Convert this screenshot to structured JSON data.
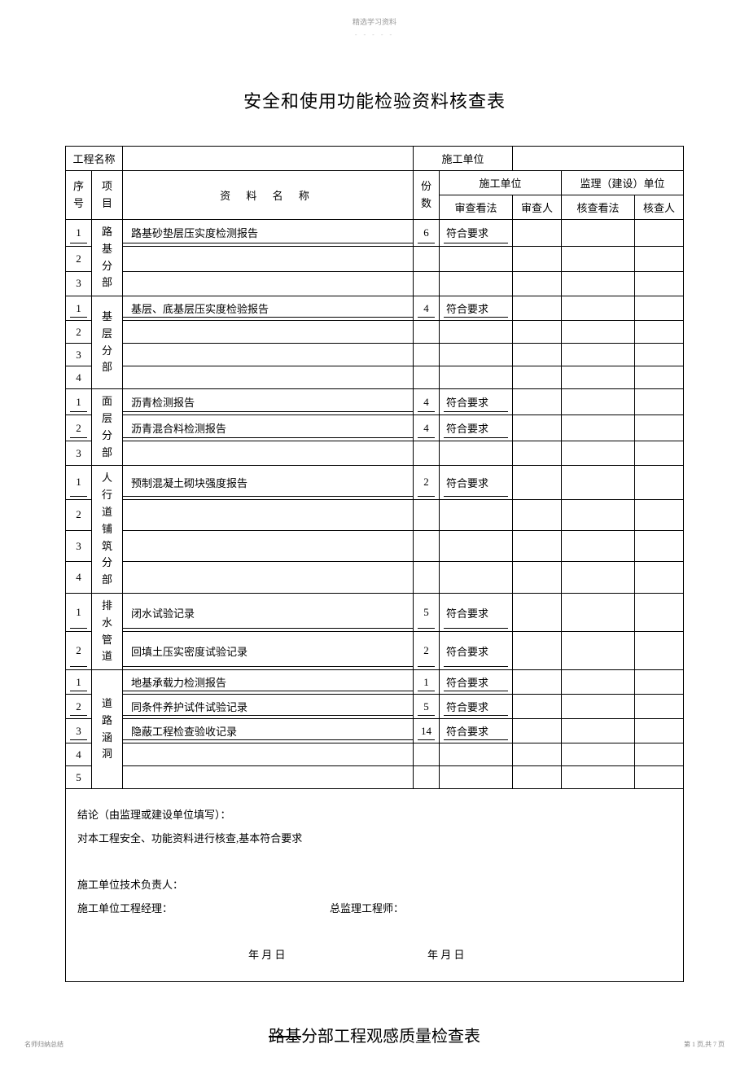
{
  "watermark": "精选学习资料",
  "watermark_sub": "- - - - -",
  "title1": "安全和使用功能检验资料核查表",
  "header": {
    "project_name_label": "工程名称",
    "construction_unit_label": "施工单位",
    "seq_label": "序号",
    "item_label": "项目",
    "material_name_label": "资 料 名 称",
    "count_label": "份数",
    "constructor_group": "施工单位",
    "supervisor_group": "监理（建设）单位",
    "review_opinion": "审查看法",
    "reviewer": "审查人",
    "check_opinion": "核查看法",
    "checker": "核查人"
  },
  "sections": [
    {
      "label": "路基分部",
      "rows": [
        {
          "n": "1",
          "name": "路基砂垫层压实度检测报告",
          "c": "6",
          "r": "符合要求"
        },
        {
          "n": "2",
          "name": "",
          "c": "",
          "r": ""
        },
        {
          "n": "3",
          "name": "",
          "c": "",
          "r": ""
        }
      ]
    },
    {
      "label": "基层分部",
      "rows": [
        {
          "n": "1",
          "name": "基层、底基层压实度检验报告",
          "c": "4",
          "r": "符合要求"
        },
        {
          "n": "2",
          "name": "",
          "c": "",
          "r": ""
        },
        {
          "n": "3",
          "name": "",
          "c": "",
          "r": ""
        },
        {
          "n": "4",
          "name": "",
          "c": "",
          "r": ""
        }
      ]
    },
    {
      "label": "面层分部",
      "rows": [
        {
          "n": "1",
          "name": "沥青检测报告",
          "c": "4",
          "r": "符合要求"
        },
        {
          "n": "2",
          "name": "沥青混合料检测报告",
          "c": "4",
          "r": "符合要求"
        },
        {
          "n": "3",
          "name": "",
          "c": "",
          "r": ""
        }
      ]
    },
    {
      "label": "人行道铺筑分部",
      "rows": [
        {
          "n": "1",
          "name": "预制混凝土砌块强度报告",
          "c": "2",
          "r": "符合要求"
        },
        {
          "n": "2",
          "name": "",
          "c": "",
          "r": ""
        },
        {
          "n": "3",
          "name": "",
          "c": "",
          "r": ""
        },
        {
          "n": "4",
          "name": "",
          "c": "",
          "r": ""
        }
      ]
    },
    {
      "label": "排水管道",
      "rows": [
        {
          "n": "1",
          "name": "闭水试验记录",
          "c": "5",
          "r": "符合要求"
        },
        {
          "n": "2",
          "name": "回填土压实密度试验记录",
          "c": "2",
          "r": "符合要求"
        }
      ]
    },
    {
      "label": "道路涵洞",
      "rows": [
        {
          "n": "1",
          "name": "地基承载力检测报告",
          "c": "1",
          "r": "符合要求"
        },
        {
          "n": "2",
          "name": "同条件养护试件试验记录",
          "c": "5",
          "r": "符合要求"
        },
        {
          "n": "3",
          "name": "隐蔽工程检查验收记录",
          "c": "14",
          "r": "符合要求"
        },
        {
          "n": "4",
          "name": "",
          "c": "",
          "r": ""
        },
        {
          "n": "5",
          "name": "",
          "c": "",
          "r": ""
        }
      ]
    }
  ],
  "conclusion": {
    "line1": "结论（由监理或建设单位填写）：",
    "line2": "对本工程安全、功能资料进行核查,基本符合要求",
    "tech_lead": "施工单位技术负责人：",
    "pm": "施工单位工程经理：",
    "supervisor": "总监理工程师：",
    "date1": "年 月 日",
    "date2": "年 月 日"
  },
  "title2_strike": "路基",
  "title2_rest": "分部工程观感质量检查表",
  "footer_left": "名师归纳总结",
  "footer_right": "第 1 页,共 7 页"
}
